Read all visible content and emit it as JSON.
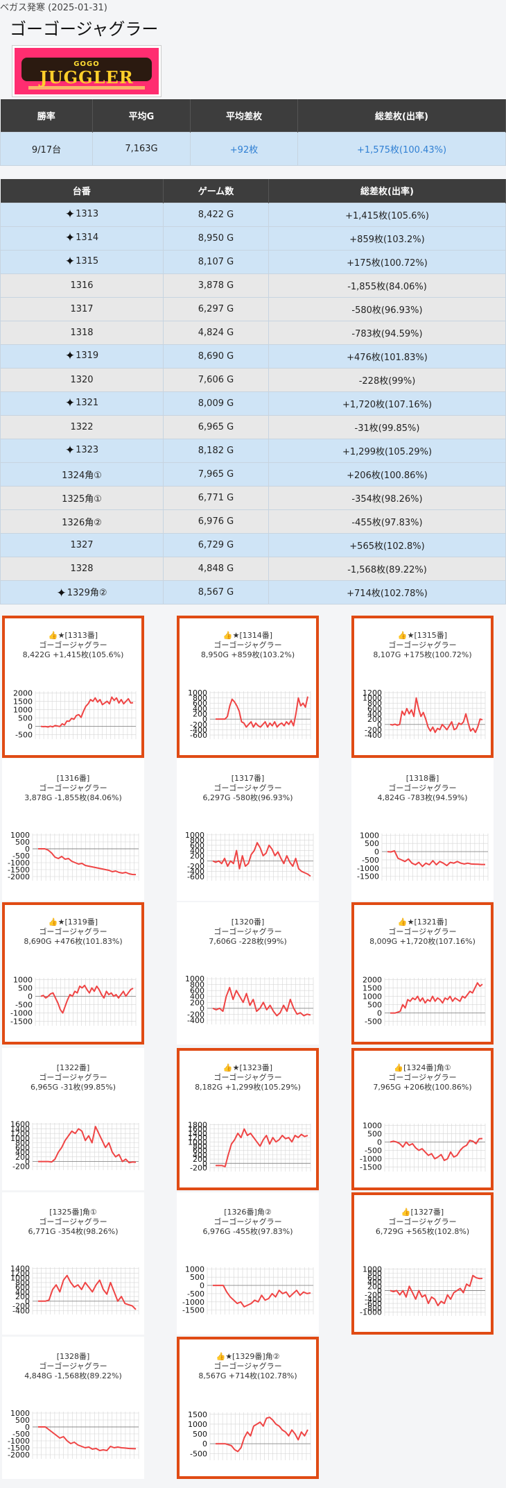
{
  "header": {
    "store_line": "ベガス発寒 (2025-01-31)",
    "title": "ゴーゴージャグラー"
  },
  "logo": {
    "top": "GOGO",
    "main": "JUGGLER"
  },
  "summary": {
    "headers": [
      "勝率",
      "平均G",
      "平均差枚",
      "総差枚(出率)"
    ],
    "values": [
      "9/17台",
      "7,163G",
      "+92枚",
      "+1,575枚(100.43%)"
    ]
  },
  "machines_table": {
    "headers": [
      "台番",
      "ゲーム数",
      "総差枚(出率)"
    ],
    "rows": [
      {
        "id": "1313",
        "games": "8,422 G",
        "diff": "+1,415枚(105.6%)",
        "win": true
      },
      {
        "id": "1314",
        "games": "8,950 G",
        "diff": "+859枚(103.2%)",
        "win": true
      },
      {
        "id": "1315",
        "games": "8,107 G",
        "diff": "+175枚(100.72%)",
        "win": true
      },
      {
        "id": "1316",
        "games": "3,878 G",
        "diff": "-1,855枚(84.06%)",
        "win": false
      },
      {
        "id": "1317",
        "games": "6,297 G",
        "diff": "-580枚(96.93%)",
        "win": false
      },
      {
        "id": "1318",
        "games": "4,824 G",
        "diff": "-783枚(94.59%)",
        "win": false
      },
      {
        "id": "1319",
        "games": "8,690 G",
        "diff": "+476枚(101.83%)",
        "win": true
      },
      {
        "id": "1320",
        "games": "7,606 G",
        "diff": "-228枚(99%)",
        "win": false
      },
      {
        "id": "1321",
        "games": "8,009 G",
        "diff": "+1,720枚(107.16%)",
        "win": true
      },
      {
        "id": "1322",
        "games": "6,965 G",
        "diff": "-31枚(99.85%)",
        "win": false
      },
      {
        "id": "1323",
        "games": "8,182 G",
        "diff": "+1,299枚(105.29%)",
        "win": true
      },
      {
        "id": "1324角①",
        "games": "7,965 G",
        "diff": "+206枚(100.86%)",
        "win": true,
        "no_sparkle": true
      },
      {
        "id": "1325角①",
        "games": "6,771 G",
        "diff": "-354枚(98.26%)",
        "win": false
      },
      {
        "id": "1326角②",
        "games": "6,976 G",
        "diff": "-455枚(97.83%)",
        "win": false
      },
      {
        "id": "1327",
        "games": "6,729 G",
        "diff": "+565枚(102.8%)",
        "win": true,
        "no_sparkle": true
      },
      {
        "id": "1328",
        "games": "4,848 G",
        "diff": "-1,568枚(89.22%)",
        "win": false
      },
      {
        "id": "1329角②",
        "games": "8,567 G",
        "diff": "+714枚(102.78%)",
        "win": true
      }
    ]
  },
  "chart_data": [
    {
      "type": "line",
      "title": "👍★[1313番]",
      "subtitle": "ゴーゴージャグラー",
      "stats": "8,422G +1,415枚(105.6%)",
      "yticks": [
        2000,
        1500,
        1000,
        500,
        0,
        -500
      ],
      "ylim": [
        -600,
        2100
      ],
      "values": [
        0,
        -20,
        -10,
        -40,
        10,
        -30,
        50,
        20,
        -10,
        150,
        80,
        320,
        300,
        480,
        420,
        650,
        700,
        540,
        900,
        1200,
        1350,
        1600,
        1500,
        1700,
        1450,
        1600,
        1300,
        1400,
        1500,
        1350,
        1750,
        1550,
        1700,
        1400,
        1600,
        1350,
        1500,
        1650,
        1400,
        1415
      ]
    },
    {
      "type": "line",
      "title": "👍★[1314番]",
      "subtitle": "ゴーゴージャグラー",
      "stats": "8,950G +859枚(103.2%)",
      "yticks": [
        1000,
        800,
        600,
        400,
        200,
        0,
        -200,
        -400,
        -600
      ],
      "ylim": [
        -650,
        1050
      ],
      "values": [
        0,
        0,
        0,
        0,
        0,
        100,
        500,
        750,
        650,
        500,
        300,
        -100,
        -150,
        -300,
        -200,
        -100,
        -300,
        -150,
        -250,
        -300,
        -200,
        -100,
        -300,
        -150,
        -250,
        -100,
        -300,
        -200,
        -150,
        -250,
        -100,
        -200,
        -50,
        -250,
        200,
        800,
        500,
        600,
        450,
        850
      ]
    },
    {
      "type": "line",
      "title": "👍★[1315番]",
      "subtitle": "ゴーゴージャグラー",
      "stats": "8,107G +175枚(100.72%)",
      "yticks": [
        1200,
        1000,
        800,
        600,
        400,
        200,
        0,
        -200,
        -400
      ],
      "ylim": [
        -450,
        1250
      ],
      "values": [
        0,
        -20,
        10,
        -30,
        0,
        500,
        350,
        600,
        400,
        550,
        300,
        1000,
        600,
        300,
        450,
        200,
        -100,
        -250,
        -100,
        -300,
        -150,
        -200,
        0,
        -100,
        -200,
        -50,
        100,
        -200,
        -150,
        50,
        0,
        100,
        400,
        50,
        -250,
        -150,
        -300,
        -100,
        200,
        175
      ]
    },
    {
      "type": "line",
      "title": "[1316番]",
      "subtitle": "ゴーゴージャグラー",
      "stats": "3,878G -1,855枚(84.06%)",
      "yticks": [
        1000,
        500,
        0,
        -500,
        -1000,
        -1500,
        -2000
      ],
      "ylim": [
        -2100,
        1100
      ],
      "values": [
        0,
        0,
        0,
        -100,
        -300,
        -600,
        -700,
        -550,
        -750,
        -700,
        -900,
        -1000,
        -1100,
        -1050,
        -1200,
        -1250,
        -1300,
        -1350,
        -1400,
        -1450,
        -1500,
        -1550,
        -1650,
        -1600,
        -1700,
        -1750,
        -1700,
        -1800,
        -1850,
        -1855
      ]
    },
    {
      "type": "line",
      "title": "[1317番]",
      "subtitle": "ゴーゴージャグラー",
      "stats": "6,297G -580枚(96.93%)",
      "yticks": [
        1000,
        800,
        600,
        400,
        200,
        0,
        -200,
        -400,
        -600
      ],
      "ylim": [
        -650,
        1050
      ],
      "values": [
        0,
        -50,
        0,
        -100,
        100,
        -200,
        0,
        -100,
        400,
        -300,
        200,
        -200,
        -100,
        250,
        400,
        700,
        500,
        200,
        300,
        600,
        450,
        200,
        350,
        100,
        -100,
        200,
        -50,
        -200,
        100,
        -300,
        -400,
        -450,
        -500,
        -580
      ]
    },
    {
      "type": "line",
      "title": "[1318番]",
      "subtitle": "ゴーゴージャグラー",
      "stats": "4,824G -783枚(94.59%)",
      "yticks": [
        1000,
        500,
        0,
        -500,
        -1000,
        -1500
      ],
      "ylim": [
        -1600,
        1100
      ],
      "values": [
        0,
        -20,
        50,
        -400,
        -500,
        -600,
        -450,
        -700,
        -800,
        -650,
        -900,
        -700,
        -800,
        -550,
        -800,
        -600,
        -700,
        -850,
        -650,
        -700,
        -600,
        -700,
        -750,
        -700,
        -750,
        -760,
        -770,
        -780,
        -783
      ]
    },
    {
      "type": "line",
      "title": "👍★[1319番]",
      "subtitle": "ゴーゴージャグラー",
      "stats": "8,690G +476枚(101.83%)",
      "yticks": [
        1000,
        500,
        0,
        -500,
        -1000,
        -1500
      ],
      "ylim": [
        -1600,
        1100
      ],
      "values": [
        0,
        50,
        -100,
        0,
        150,
        200,
        -100,
        -400,
        -800,
        -1000,
        -600,
        -200,
        100,
        0,
        300,
        200,
        600,
        500,
        650,
        400,
        200,
        500,
        300,
        600,
        400,
        100,
        -100,
        300,
        100,
        200,
        0,
        100,
        -100,
        100,
        300,
        0,
        200,
        400,
        476
      ]
    },
    {
      "type": "line",
      "title": "[1320番]",
      "subtitle": "ゴーゴージャグラー",
      "stats": "7,606G -228枚(99%)",
      "yticks": [
        1000,
        800,
        600,
        400,
        200,
        0,
        -200,
        -400
      ],
      "ylim": [
        -450,
        1050
      ],
      "values": [
        0,
        -50,
        0,
        -100,
        400,
        700,
        300,
        600,
        400,
        200,
        500,
        100,
        300,
        -100,
        0,
        200,
        -50,
        100,
        -100,
        -250,
        -150,
        100,
        -100,
        300,
        0,
        -200,
        -150,
        -250,
        -200,
        -228
      ]
    },
    {
      "type": "line",
      "title": "👍★[1321番]",
      "subtitle": "ゴーゴージャグラー",
      "stats": "8,009G +1,720枚(107.16%)",
      "yticks": [
        2000,
        1500,
        1000,
        500,
        0,
        -500
      ],
      "ylim": [
        -600,
        2100
      ],
      "values": [
        0,
        0,
        0,
        50,
        100,
        500,
        300,
        800,
        700,
        900,
        800,
        1000,
        700,
        900,
        600,
        800,
        700,
        1000,
        700,
        900,
        800,
        600,
        900,
        800,
        1000,
        700,
        900,
        800,
        700,
        1000,
        900,
        1100,
        1300,
        1200,
        1500,
        1800,
        1600,
        1720
      ]
    },
    {
      "type": "line",
      "title": "[1322番]",
      "subtitle": "ゴーゴージャグラー",
      "stats": "6,965G -31枚(99.85%)",
      "yticks": [
        1600,
        1400,
        1200,
        1000,
        800,
        600,
        400,
        200,
        0,
        -200
      ],
      "ylim": [
        -250,
        1650
      ],
      "values": [
        0,
        0,
        0,
        0,
        -20,
        100,
        400,
        600,
        900,
        1100,
        1300,
        1200,
        1400,
        1300,
        900,
        1100,
        800,
        1500,
        1200,
        900,
        600,
        800,
        400,
        200,
        300,
        0,
        100,
        -50,
        -20,
        -31
      ]
    },
    {
      "type": "line",
      "title": "👍★[1323番]",
      "subtitle": "ゴーゴージャグラー",
      "stats": "8,182G +1,299枚(105.29%)",
      "yticks": [
        1800,
        1600,
        1400,
        1200,
        1000,
        800,
        600,
        400,
        200,
        0,
        -200
      ],
      "ylim": [
        -250,
        1850
      ],
      "values": [
        -100,
        -100,
        -100,
        -150,
        400,
        900,
        1100,
        1400,
        1200,
        1600,
        1300,
        1400,
        1200,
        1000,
        800,
        1100,
        1300,
        900,
        1200,
        1000,
        1100,
        1300,
        1150,
        1200,
        1000,
        1300,
        1200,
        1350,
        1250,
        1299
      ]
    },
    {
      "type": "line",
      "title": "👍[1324番]角①",
      "subtitle": "ゴーゴージャグラー",
      "stats": "7,965G +206枚(100.86%)",
      "yticks": [
        1000,
        500,
        0,
        -500,
        -1000,
        -1500
      ],
      "ylim": [
        -1600,
        1100
      ],
      "values": [
        0,
        50,
        0,
        -100,
        -300,
        0,
        -200,
        -100,
        -350,
        -500,
        -400,
        -600,
        -800,
        -700,
        -1000,
        -900,
        -750,
        -1100,
        -1000,
        -600,
        -900,
        -800,
        -500,
        -300,
        -200,
        100,
        50,
        -100,
        200,
        206
      ]
    },
    {
      "type": "line",
      "title": "[1325番]角①",
      "subtitle": "ゴーゴージャグラー",
      "stats": "6,771G -354枚(98.26%)",
      "yticks": [
        1400,
        1200,
        1000,
        800,
        600,
        400,
        200,
        0,
        -200,
        -400
      ],
      "ylim": [
        -450,
        1450
      ],
      "values": [
        0,
        0,
        0,
        50,
        500,
        700,
        400,
        900,
        1100,
        800,
        600,
        700,
        500,
        800,
        600,
        400,
        700,
        900,
        500,
        300,
        800,
        400,
        0,
        200,
        -100,
        -150,
        -200,
        -354
      ]
    },
    {
      "type": "line",
      "title": "[1326番]角②",
      "subtitle": "ゴーゴージャグラー",
      "stats": "6,976G -455枚(97.83%)",
      "yticks": [
        1000,
        500,
        0,
        -500,
        -1000,
        -1500
      ],
      "ylim": [
        -1600,
        1100
      ],
      "values": [
        0,
        0,
        0,
        0,
        -400,
        -700,
        -900,
        -1100,
        -1000,
        -1300,
        -1200,
        -1100,
        -900,
        -1000,
        -600,
        -900,
        -800,
        -500,
        -700,
        -300,
        -500,
        -400,
        -700,
        -500,
        -300,
        -600,
        -400,
        -500,
        -455
      ]
    },
    {
      "type": "line",
      "title": "👍[1327番]",
      "subtitle": "ゴーゴージャグラー",
      "stats": "6,729G +565枚(102.8%)",
      "yticks": [
        1000,
        800,
        600,
        400,
        200,
        0,
        -200,
        -400,
        -600,
        -800,
        -1000
      ],
      "ylim": [
        -1050,
        1050
      ],
      "values": [
        0,
        -50,
        0,
        -200,
        0,
        -300,
        200,
        -100,
        -400,
        0,
        -300,
        -200,
        -600,
        -300,
        -400,
        -700,
        -500,
        -600,
        -200,
        -400,
        -100,
        0,
        100,
        -100,
        300,
        200,
        700,
        600,
        560,
        565
      ]
    },
    {
      "type": "line",
      "title": "[1328番]",
      "subtitle": "ゴーゴージャグラー",
      "stats": "4,848G -1,568枚(89.22%)",
      "yticks": [
        1000,
        500,
        0,
        -500,
        -1000,
        -1500,
        -2000
      ],
      "ylim": [
        -2100,
        1100
      ],
      "values": [
        0,
        0,
        0,
        -200,
        -400,
        -600,
        -800,
        -700,
        -1000,
        -1200,
        -1100,
        -1300,
        -1400,
        -1500,
        -1450,
        -1600,
        -1550,
        -1700,
        -1650,
        -1700,
        -1400,
        -1500,
        -1450,
        -1500,
        -1520,
        -1550,
        -1560,
        -1568
      ]
    },
    {
      "type": "line",
      "title": "👍★[1329番]角②",
      "subtitle": "ゴーゴージャグラー",
      "stats": "8,567G +714枚(102.78%)",
      "yticks": [
        1500,
        1000,
        500,
        0,
        -500
      ],
      "ylim": [
        -700,
        1600
      ],
      "values": [
        0,
        0,
        0,
        0,
        -50,
        -100,
        -300,
        -400,
        -200,
        300,
        600,
        400,
        900,
        1000,
        1100,
        900,
        1300,
        1350,
        1200,
        1000,
        900,
        700,
        600,
        400,
        700,
        500,
        200,
        600,
        400,
        714
      ]
    }
  ]
}
